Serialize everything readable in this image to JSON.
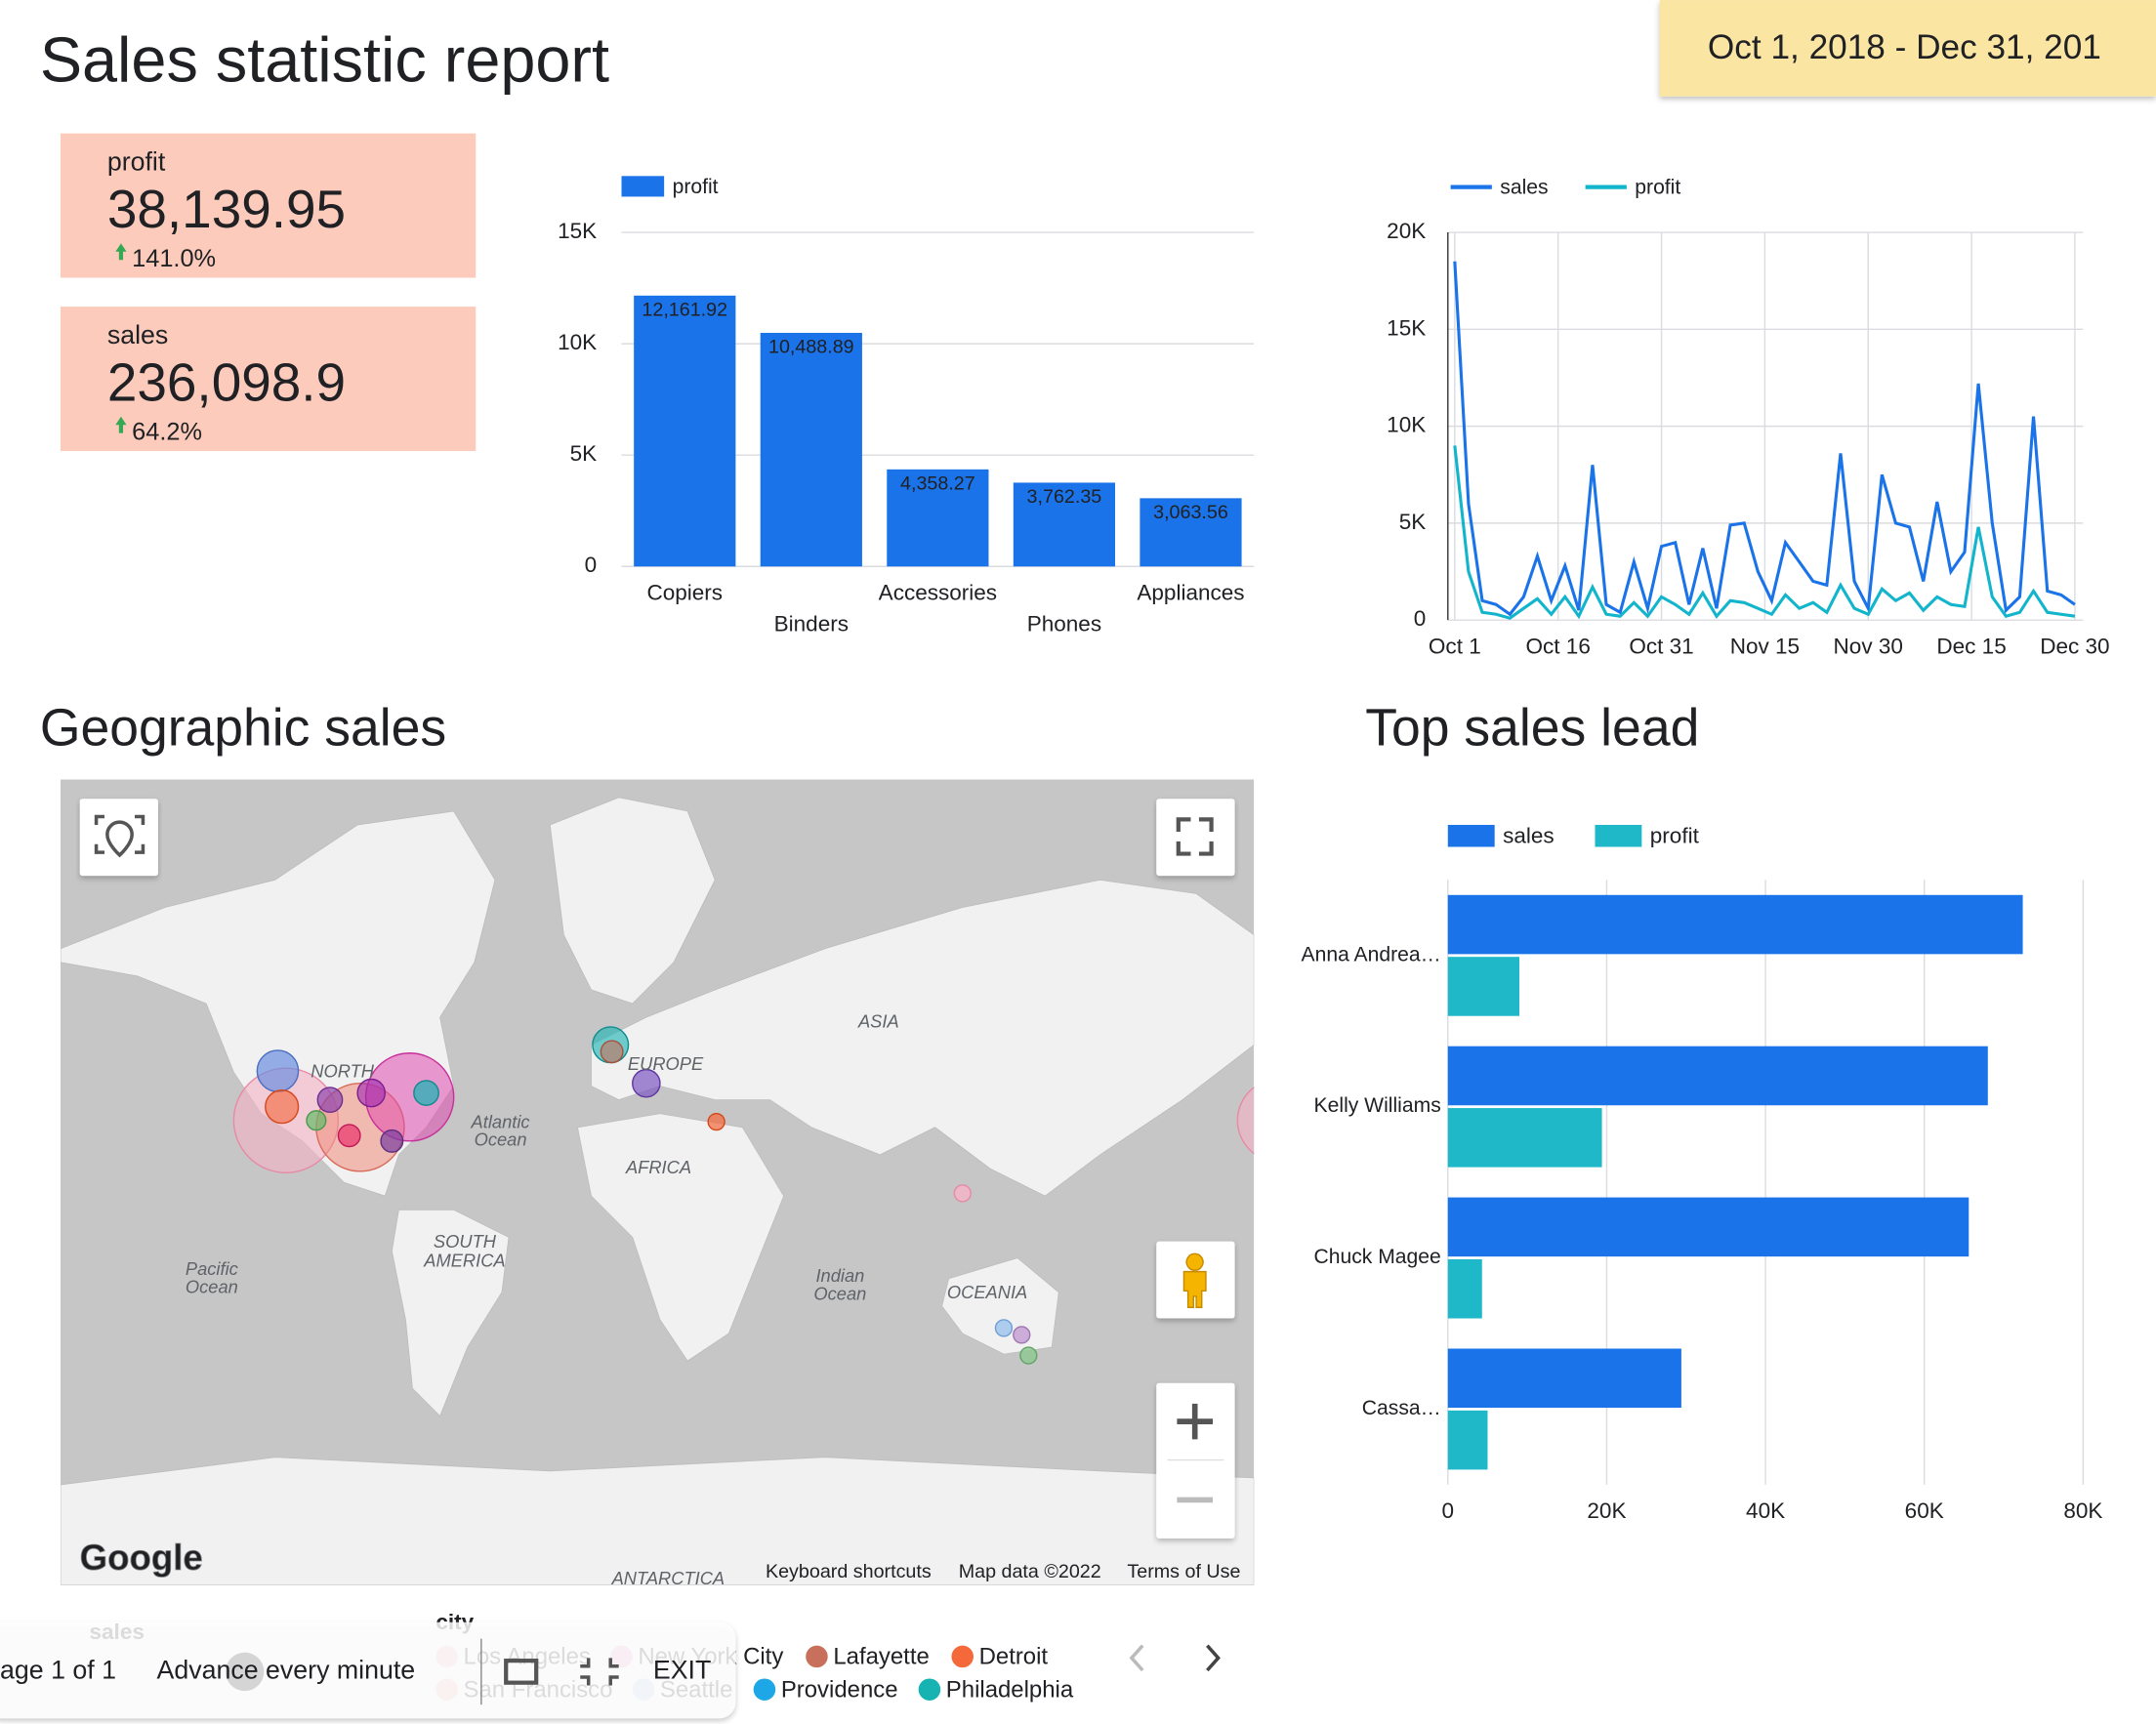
{
  "header": {
    "title": "Sales statistic report",
    "date_range": "Oct 1, 2018 - Dec 31, 201"
  },
  "scorecards": [
    {
      "label": "profit",
      "value": "38,139.95",
      "change": "141.0%"
    },
    {
      "label": "sales",
      "value": "236,098.9",
      "change": "64.2%"
    }
  ],
  "sections": {
    "geo": "Geographic sales",
    "top": "Top sales lead"
  },
  "chart_data": [
    {
      "type": "bar",
      "categories": [
        "Copiers",
        "Binders",
        "Accessories",
        "Phones",
        "Appliances"
      ],
      "series": [
        {
          "name": "profit",
          "color": "#1a73e8",
          "values": [
            12161.92,
            10488.89,
            4358.27,
            3762.35,
            3063.56
          ],
          "value_labels": [
            "12,161.92",
            "10,488.89",
            "4,358.27",
            "3,762.35",
            "3,063.56"
          ]
        }
      ],
      "ylim": [
        0,
        15000
      ],
      "yticks": [
        0,
        {
          "value": 5000,
          "label": "5K"
        },
        {
          "value": 10000,
          "label": "10K"
        },
        {
          "value": 15000,
          "label": "15K"
        }
      ],
      "grid": true,
      "legend": "top-left"
    },
    {
      "type": "line",
      "x": [
        0,
        2,
        4,
        6,
        8,
        10,
        12,
        14,
        16,
        18,
        20,
        22,
        24,
        26,
        28,
        30,
        32,
        34,
        36,
        38,
        40,
        42,
        44,
        46,
        48,
        50,
        52,
        54,
        56,
        58,
        60,
        62,
        64,
        66,
        68,
        70,
        72,
        74,
        76,
        78,
        80,
        82,
        84,
        86,
        88,
        90
      ],
      "series": [
        {
          "name": "sales",
          "color": "#1a73e8",
          "values": [
            18500,
            6000,
            1000,
            800,
            300,
            1200,
            3300,
            1000,
            2800,
            500,
            8000,
            800,
            400,
            3000,
            600,
            3800,
            4000,
            800,
            3700,
            600,
            4900,
            5000,
            2500,
            1000,
            4000,
            3000,
            2000,
            1800,
            8600,
            2000,
            600,
            7500,
            5000,
            4800,
            2000,
            6100,
            2500,
            3500,
            12200,
            5000,
            500,
            1200,
            10500,
            1500,
            1300,
            800
          ]
        },
        {
          "name": "profit",
          "color": "#12b5cb",
          "values": [
            9000,
            2500,
            400,
            300,
            100,
            600,
            1100,
            300,
            1200,
            200,
            1700,
            300,
            200,
            900,
            200,
            1200,
            800,
            300,
            1400,
            200,
            1000,
            900,
            600,
            300,
            1300,
            600,
            900,
            400,
            1800,
            600,
            300,
            1600,
            1000,
            1400,
            500,
            1200,
            800,
            700,
            4800,
            1200,
            200,
            400,
            1500,
            400,
            300,
            200
          ]
        }
      ],
      "xlim": [
        0,
        90
      ],
      "xticks": [
        {
          "value": 0,
          "label": "Oct 1"
        },
        {
          "value": 15,
          "label": "Oct 16"
        },
        {
          "value": 30,
          "label": "Oct 31"
        },
        {
          "value": 45,
          "label": "Nov 15"
        },
        {
          "value": 60,
          "label": "Nov 30"
        },
        {
          "value": 75,
          "label": "Dec 15"
        },
        {
          "value": 90,
          "label": "Dec 30"
        }
      ],
      "ylim": [
        0,
        20000
      ],
      "yticks": [
        0,
        {
          "value": 5000,
          "label": "5K"
        },
        {
          "value": 10000,
          "label": "10K"
        },
        {
          "value": 15000,
          "label": "15K"
        },
        {
          "value": 20000,
          "label": "20K"
        }
      ],
      "grid": true,
      "legend": "top-left"
    },
    {
      "type": "hbar",
      "categories": [
        "Anna Andrea…",
        "Kelly Williams",
        "Chuck Magee",
        "Cassa…"
      ],
      "series": [
        {
          "name": "sales",
          "color": "#1a73e8",
          "values": [
            72400,
            68000,
            65600,
            29400
          ]
        },
        {
          "name": "profit",
          "color": "#1fb8c9",
          "values": [
            9000,
            19400,
            4300,
            5000
          ]
        }
      ],
      "xlim": [
        0,
        80000
      ],
      "xticks": [
        0,
        {
          "value": 20000,
          "label": "20K"
        },
        {
          "value": 40000,
          "label": "40K"
        },
        {
          "value": 60000,
          "label": "60K"
        },
        {
          "value": 80000,
          "label": "80K"
        }
      ],
      "grid": true,
      "legend": "top-left"
    }
  ],
  "map": {
    "labels": [
      "ASIA",
      "EUROPE",
      "NORTH",
      "AFRICA",
      "SOUTH",
      "AMERICA",
      "OCEANIA",
      "ANTARCTICA",
      "Atlantic",
      "Ocean",
      "Pacific",
      "Ocean",
      "Indian",
      "Ocean"
    ],
    "attribution": [
      "Google",
      "Keyboard shortcuts",
      "Map data ©2022",
      "Terms of Use"
    ],
    "legend_titles": [
      "sales",
      "city"
    ],
    "cities": [
      {
        "name": "Los Angeles",
        "color": "#f6b8c8"
      },
      {
        "name": "New York City",
        "color": "#e9a3c9"
      },
      {
        "name": "Lafayette",
        "color": "#c8705c"
      },
      {
        "name": "Detroit",
        "color": "#f4683a"
      },
      {
        "name": "San Francisco",
        "color": "#f5c1b1"
      },
      {
        "name": "Seattle",
        "color": "#b9d3f0"
      },
      {
        "name": "Providence",
        "color": "#1ea7e6"
      },
      {
        "name": "Philadelphia",
        "color": "#17b3b3"
      }
    ]
  },
  "controls": {
    "page": "age 1 of 1",
    "advance": "Advance every minute",
    "exit": "EXIT"
  }
}
